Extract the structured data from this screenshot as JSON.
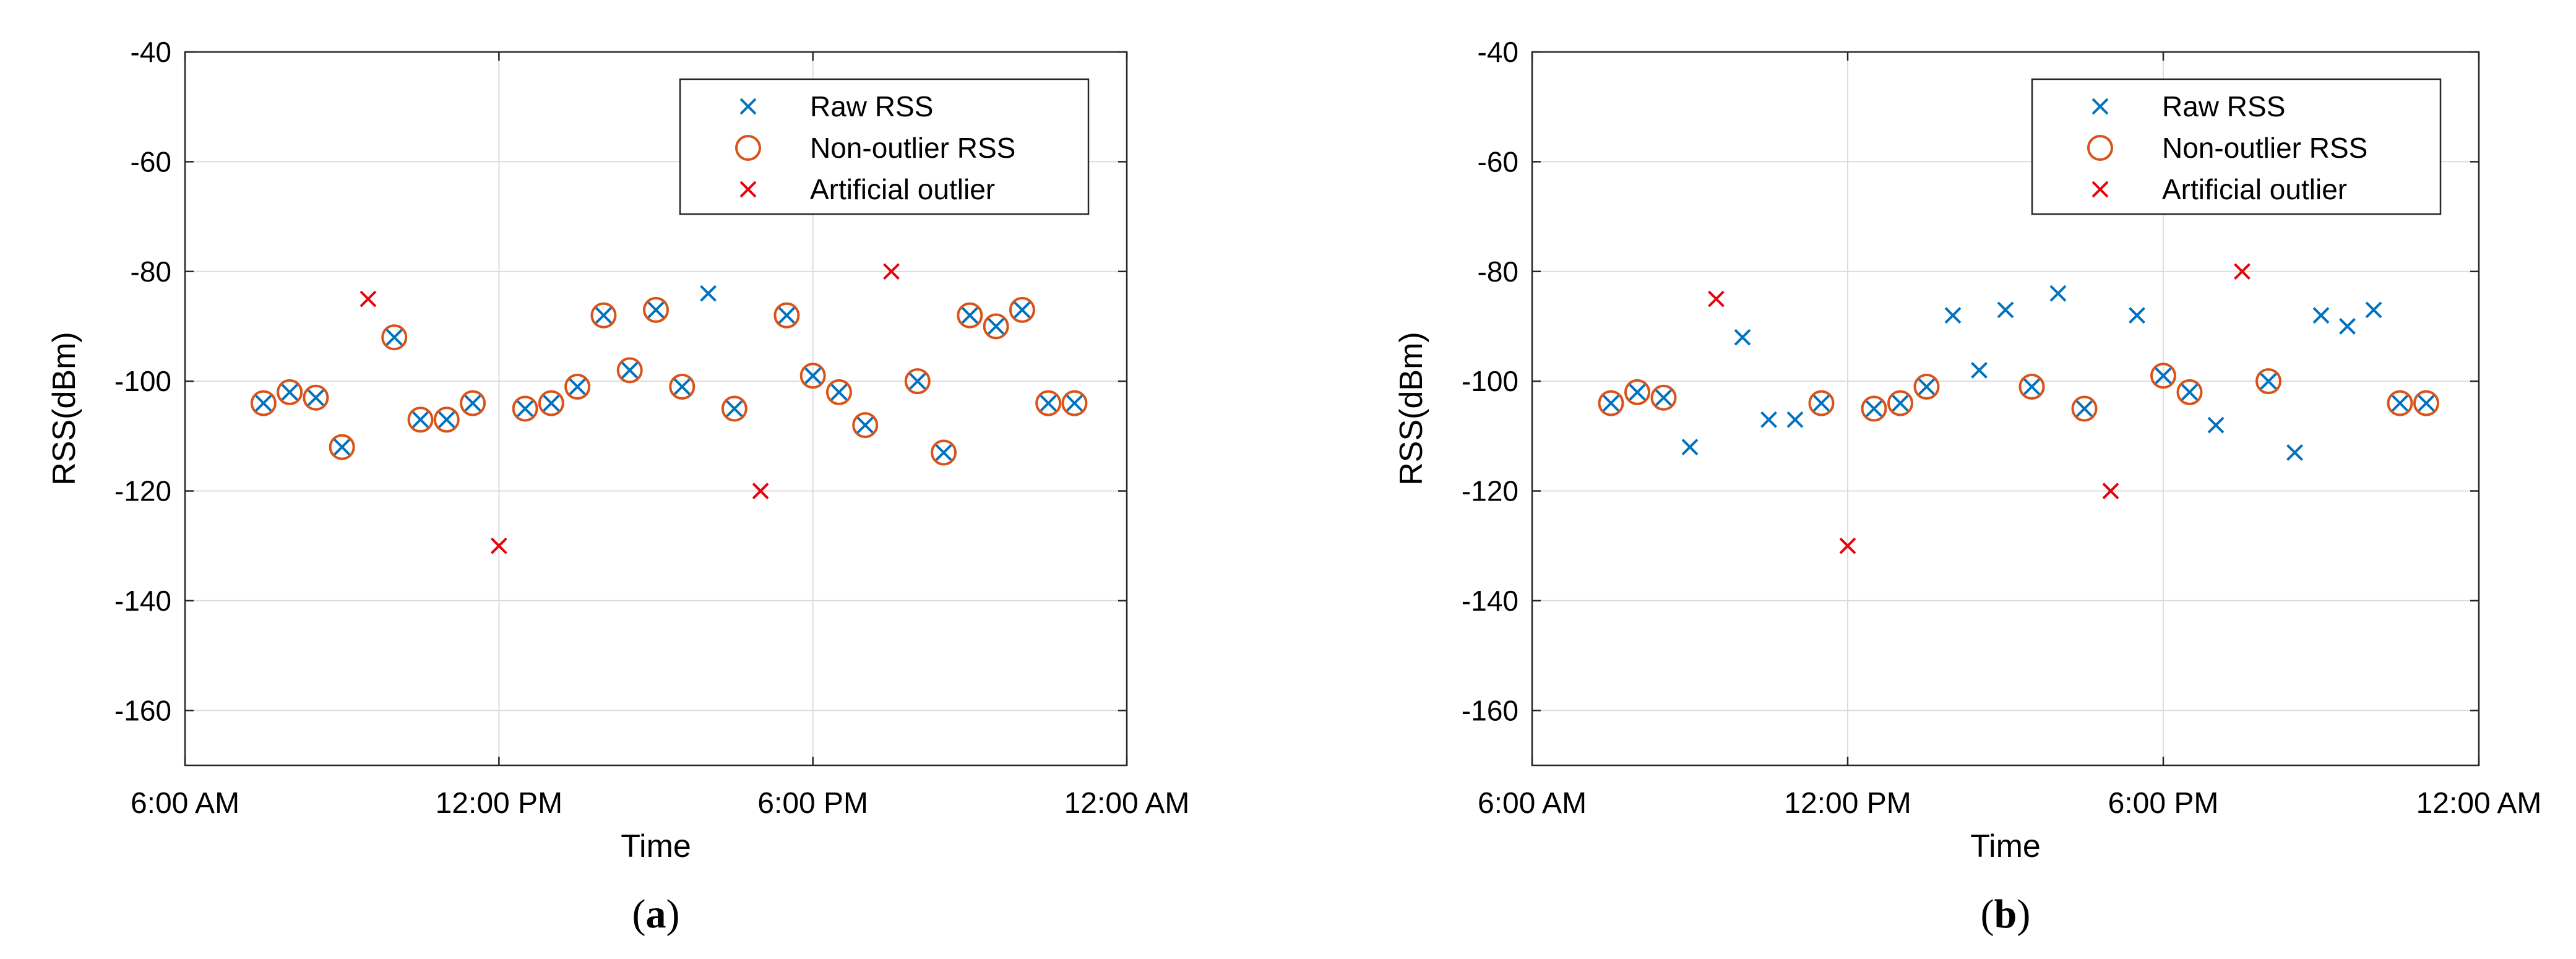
{
  "colors": {
    "raw": "#0072BD",
    "nonoutlier": "#D95319",
    "artificial": "#E8000B",
    "grid": "#dcdcdc",
    "axis": "#262626"
  },
  "chart_data": [
    {
      "type": "scatter",
      "panel_label": "a",
      "xlabel": "Time",
      "ylabel": "RSS(dBm)",
      "ylim": [
        -170,
        -40
      ],
      "yticks": [
        -40,
        -60,
        -80,
        -100,
        -120,
        -140,
        -160
      ],
      "xlim": [
        6,
        24
      ],
      "xticks": [
        6,
        12,
        18,
        24
      ],
      "xtick_labels": [
        "6:00 AM",
        "12:00 PM",
        "6:00 PM",
        "12:00 AM"
      ],
      "legend": {
        "position": "top-right",
        "entries": [
          "Raw RSS",
          "Non-outlier RSS",
          "Artificial outlier"
        ]
      },
      "series": [
        {
          "name": "Raw RSS",
          "marker": "x",
          "color": "#0072BD",
          "x": [
            7.5,
            8.0,
            8.5,
            9.0,
            10.0,
            10.5,
            11.0,
            11.5,
            12.5,
            13.0,
            13.5,
            14.0,
            14.5,
            15.0,
            15.5,
            16.0,
            16.5,
            17.5,
            18.0,
            18.5,
            19.0,
            20.0,
            20.5,
            21.0,
            21.5,
            22.0,
            22.5,
            23.0
          ],
          "y": [
            -104,
            -102,
            -103,
            -112,
            -92,
            -107,
            -107,
            -104,
            -105,
            -104,
            -101,
            -88,
            -98,
            -87,
            -101,
            -84,
            -105,
            -88,
            -99,
            -102,
            -108,
            -100,
            -113,
            -88,
            -90,
            -87,
            -104,
            -104
          ]
        },
        {
          "name": "Non-outlier RSS",
          "marker": "o",
          "color": "#D95319",
          "x": [
            7.5,
            8.0,
            8.5,
            9.0,
            10.0,
            10.5,
            11.0,
            11.5,
            12.5,
            13.0,
            13.5,
            14.0,
            14.5,
            15.0,
            15.5,
            16.5,
            17.5,
            18.0,
            18.5,
            19.0,
            20.0,
            20.5,
            21.0,
            21.5,
            22.0,
            22.5,
            23.0
          ],
          "y": [
            -104,
            -102,
            -103,
            -112,
            -92,
            -107,
            -107,
            -104,
            -105,
            -104,
            -101,
            -88,
            -98,
            -87,
            -101,
            -105,
            -88,
            -99,
            -102,
            -108,
            -100,
            -113,
            -88,
            -90,
            -87,
            -104,
            -104
          ]
        },
        {
          "name": "Artificial outlier",
          "marker": "x",
          "color": "#E8000B",
          "x": [
            9.5,
            12.0,
            17.0,
            19.5
          ],
          "y": [
            -85,
            -130,
            -120,
            -80
          ]
        }
      ]
    },
    {
      "type": "scatter",
      "panel_label": "b",
      "xlabel": "Time",
      "ylabel": "RSS(dBm)",
      "ylim": [
        -170,
        -40
      ],
      "yticks": [
        -40,
        -60,
        -80,
        -100,
        -120,
        -140,
        -160
      ],
      "xlim": [
        6,
        24
      ],
      "xticks": [
        6,
        12,
        18,
        24
      ],
      "xtick_labels": [
        "6:00 AM",
        "12:00 PM",
        "6:00 PM",
        "12:00 AM"
      ],
      "legend": {
        "position": "top-right",
        "entries": [
          "Raw RSS",
          "Non-outlier RSS",
          "Artificial outlier"
        ]
      },
      "series": [
        {
          "name": "Raw RSS",
          "marker": "x",
          "color": "#0072BD",
          "x": [
            7.5,
            8.0,
            8.5,
            9.0,
            10.0,
            10.5,
            11.0,
            11.5,
            12.5,
            13.0,
            13.5,
            14.0,
            14.5,
            15.0,
            15.5,
            16.0,
            16.5,
            17.5,
            18.0,
            18.5,
            19.0,
            20.0,
            20.5,
            21.0,
            21.5,
            22.0,
            22.5,
            23.0
          ],
          "y": [
            -104,
            -102,
            -103,
            -112,
            -92,
            -107,
            -107,
            -104,
            -105,
            -104,
            -101,
            -88,
            -98,
            -87,
            -101,
            -84,
            -105,
            -88,
            -99,
            -102,
            -108,
            -100,
            -113,
            -88,
            -90,
            -87,
            -104,
            -104
          ]
        },
        {
          "name": "Non-outlier RSS",
          "marker": "o",
          "color": "#D95319",
          "x": [
            7.5,
            8.0,
            8.5,
            11.5,
            12.5,
            13.0,
            13.5,
            15.5,
            16.5,
            18.0,
            18.5,
            20.0,
            22.5,
            23.0
          ],
          "y": [
            -104,
            -102,
            -103,
            -104,
            -105,
            -104,
            -101,
            -101,
            -105,
            -99,
            -102,
            -100,
            -104,
            -104
          ]
        },
        {
          "name": "Artificial outlier",
          "marker": "x",
          "color": "#E8000B",
          "x": [
            9.5,
            12.0,
            17.0,
            19.5
          ],
          "y": [
            -85,
            -130,
            -120,
            -80
          ]
        }
      ]
    }
  ]
}
